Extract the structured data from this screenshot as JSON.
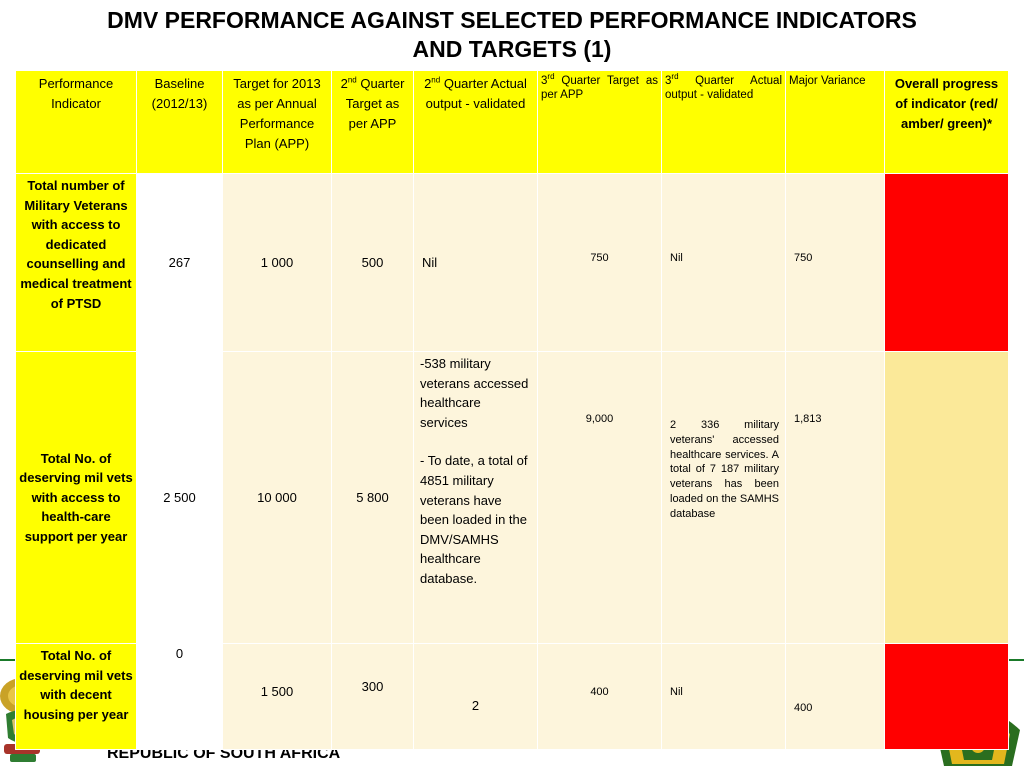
{
  "title": {
    "line1": "DMV PERFORMANCE  AGAINST SELECTED PERFORMANCE INDICATORS",
    "line2": "AND TARGETS (1)"
  },
  "table": {
    "headers": {
      "indicator": "Performance Indicator",
      "baseline": "Baseline (2012/13)",
      "target_app": "Target for 2013 as per Annual Performance Plan (APP)",
      "q2_target_num": "2",
      "q2_target_sup": "nd",
      "q2_target_rest": "Quarter Target as per APP",
      "q2_actual_num": "2",
      "q2_actual_sup": "nd",
      "q2_actual_rest": "Quarter Actual output - validated",
      "q3_target_num": "3",
      "q3_target_sup": "rd",
      "q3_target_rest": "Quarter Target as per APP",
      "q3_actual_num": "3",
      "q3_actual_sup": "rd",
      "q3_actual_rest": "Quarter Actual output - validated",
      "variance": "Major Variance",
      "progress": "Overall progress of indicator (red/ amber/ green)*"
    },
    "rows": [
      {
        "indicator": "Total number of Military Veterans with access to dedicated counselling and medical treatment of PTSD",
        "baseline": "267",
        "target_app": "1 000",
        "q2_target": "500",
        "q2_actual": "Nil",
        "q3_target": "750",
        "q3_actual": "Nil",
        "variance": "750",
        "status": "red"
      },
      {
        "indicator": "Total No. of deserving mil vets with access to health-care support per year",
        "baseline": "2 500",
        "target_app": "10 000",
        "q2_target": "5 800",
        "q2_actual_p1": "-538 military veterans accessed healthcare services",
        "q2_actual_p2": "- To date, a total of 4851 military veterans have been loaded in the DMV/SAMHS healthcare database.",
        "q3_target": "9,000",
        "q3_actual": "2 336 military veterans' accessed healthcare services. A total of 7 187 military veterans has been loaded on the SAMHS database",
        "variance": "1,813",
        "status": "amber"
      },
      {
        "indicator": "Total No. of deserving mil vets with decent housing per year",
        "baseline": "0",
        "target_app": "1 500",
        "q2_target": "300",
        "q2_actual": "2",
        "q3_target": "400",
        "q3_actual": "Nil",
        "variance": "400",
        "status": "red"
      }
    ]
  },
  "footer": {
    "country": "REPUBLIC OF SOUTH AFRICA"
  },
  "colors": {
    "header_bg": "#ffff00",
    "indicator_bg": "#ffff00",
    "cell_bg": "#fdf5dc",
    "red": "#ff0000",
    "amber": "#fbe999",
    "accent_line": "#1a7a2a"
  },
  "icons": {
    "left": "coat-of-arms-icon",
    "right": "dmv-emblem-icon"
  }
}
